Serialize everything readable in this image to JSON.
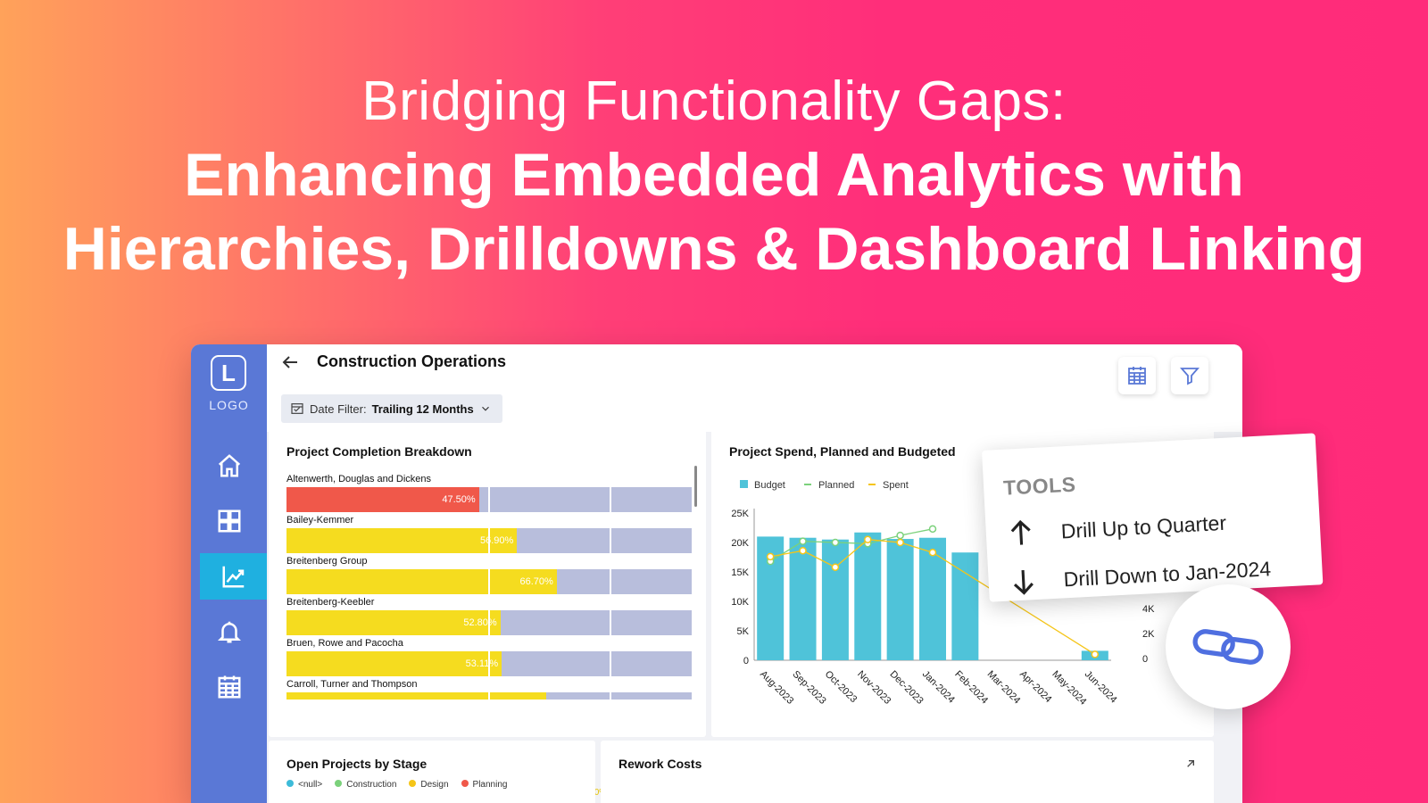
{
  "hero": {
    "line1": "Bridging Functionality Gaps:",
    "line2": "Enhancing Embedded Analytics with",
    "line3": "Hierarchies, Drilldowns & Dashboard Linking"
  },
  "sidebar": {
    "logo_letter": "L",
    "logo_text": "LOGO",
    "items": [
      {
        "icon": "home-icon"
      },
      {
        "icon": "dashboard-icon"
      },
      {
        "icon": "analytics-icon",
        "active": true
      },
      {
        "icon": "bell-icon"
      },
      {
        "icon": "calendar-icon"
      }
    ]
  },
  "header": {
    "title": "Construction Operations",
    "date_filter_label": "Date Filter:",
    "date_filter_value": "Trailing 12 Months"
  },
  "completion": {
    "title": "Project Completion Breakdown",
    "rows": [
      {
        "name": "Altenwerth, Douglas and Dickens",
        "value": 47.5,
        "label": "47.50%",
        "color": "#f0584a"
      },
      {
        "name": "Bailey-Kemmer",
        "value": 56.9,
        "label": "56.90%",
        "color": "#f5dc1f"
      },
      {
        "name": "Breitenberg Group",
        "value": 66.7,
        "label": "66.70%",
        "color": "#f5dc1f"
      },
      {
        "name": "Breitenberg-Keebler",
        "value": 52.8,
        "label": "52.80%",
        "color": "#f5dc1f"
      },
      {
        "name": "Bruen, Rowe and Pacocha",
        "value": 53.11,
        "label": "53.11%",
        "color": "#f5dc1f"
      },
      {
        "name": "Carroll, Turner and Thompson",
        "value": 64.0,
        "label": "",
        "color": "#f5dc1f"
      }
    ],
    "axis": [
      {
        "label": "50.00%",
        "value": 50,
        "color": "#e8443a"
      },
      {
        "label": "80.00%",
        "value": 80,
        "color": "#e5c200"
      },
      {
        "label": "100.00%",
        "value": 100,
        "color": "#6cc024"
      }
    ]
  },
  "spend": {
    "title": "Project Spend, Planned and Budgeted",
    "legend": [
      {
        "name": "Budget",
        "color": "#4fc3d9"
      },
      {
        "name": "Planned",
        "color": "#7bd17b"
      },
      {
        "name": "Spent",
        "color": "#f5c518"
      }
    ],
    "right_axis_ticks": [
      "4K",
      "2K",
      "0"
    ]
  },
  "chart_data": {
    "type": "bar",
    "title": "Project Spend, Planned and Budgeted",
    "categories": [
      "Aug-2023",
      "Sep-2023",
      "Oct-2023",
      "Nov-2023",
      "Dec-2023",
      "Jan-2024",
      "Feb-2024",
      "Mar-2024",
      "Apr-2024",
      "May-2024",
      "Jun-2024"
    ],
    "yticks": [
      "0",
      "5K",
      "10K",
      "15K",
      "20K",
      "25K"
    ],
    "ylim": [
      0,
      25000
    ],
    "series": [
      {
        "name": "Budget",
        "type": "bar",
        "values": [
          21000,
          20800,
          20500,
          21700,
          20600,
          20800,
          18300,
          null,
          null,
          null,
          1600
        ]
      },
      {
        "name": "Planned",
        "type": "line",
        "values": [
          16800,
          20200,
          20000,
          19800,
          21200,
          22300,
          null,
          null,
          null,
          null,
          null
        ]
      },
      {
        "name": "Spent",
        "type": "line",
        "values": [
          17600,
          18600,
          15800,
          20500,
          20000,
          18300,
          null,
          null,
          null,
          null,
          1000
        ]
      }
    ]
  },
  "stage": {
    "title": "Open Projects by Stage",
    "legend": [
      {
        "name": "<null>",
        "color": "#3dbbd9"
      },
      {
        "name": "Construction",
        "color": "#7bd17b"
      },
      {
        "name": "Design",
        "color": "#f5c518"
      },
      {
        "name": "Planning",
        "color": "#f0584a"
      }
    ]
  },
  "rework": {
    "title": "Rework Costs"
  },
  "tools": {
    "title": "TOOLS",
    "drill_up": "Drill Up to Quarter",
    "drill_down": "Drill Down to Jan-2024"
  }
}
